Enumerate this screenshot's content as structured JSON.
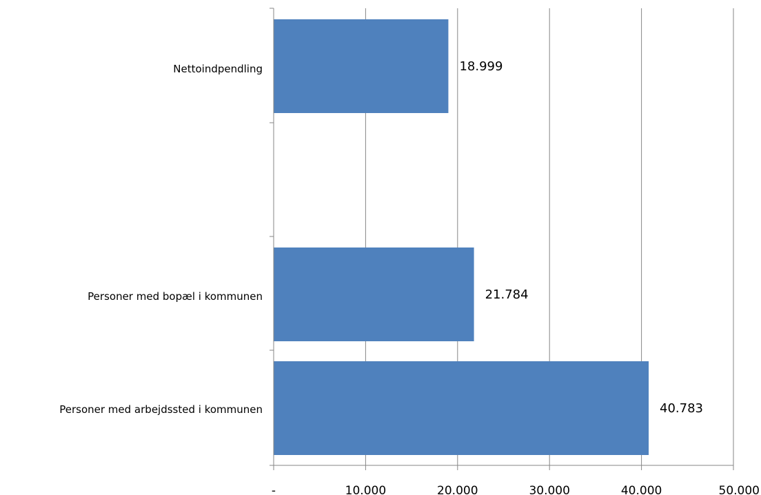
{
  "chart_data": {
    "type": "bar",
    "orientation": "horizontal",
    "categories": [
      "Personer med arbejdssted i kommunen",
      "Personer med bopæl i kommunen",
      "Nettoindpendling"
    ],
    "values": [
      40783,
      21784,
      18999
    ],
    "data_labels": [
      "40.783",
      "21.784",
      "18.999"
    ],
    "xlim": [
      0,
      50000
    ],
    "x_ticks": [
      0,
      10000,
      20000,
      30000,
      40000,
      50000
    ],
    "x_tick_labels": [
      "-",
      "10.000",
      "20.000",
      "30.000",
      "40.000",
      "50.000"
    ],
    "grid": "vertical",
    "legend": "none",
    "bar_color": "#4F81BD"
  }
}
